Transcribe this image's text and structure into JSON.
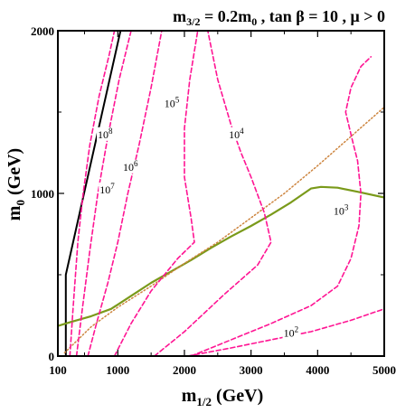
{
  "chart_data": {
    "type": "line",
    "title": {
      "segments": [
        {
          "text": "m",
          "kind": "normal"
        },
        {
          "text": "3/2",
          "kind": "sub"
        },
        {
          "text": " = 0.2m",
          "kind": "normal"
        },
        {
          "text": "0",
          "kind": "sub"
        },
        {
          "text": " , tan ",
          "kind": "normal"
        },
        {
          "text": "β",
          "kind": "normal"
        },
        {
          "text": " = 10 ,  ",
          "kind": "normal"
        },
        {
          "text": "μ",
          "kind": "normal"
        },
        {
          "text": " > 0",
          "kind": "normal"
        }
      ]
    },
    "xlabel": {
      "main": "m",
      "sub": "1/2",
      "unit": " (GeV)"
    },
    "ylabel": {
      "main": "m",
      "sub": "0",
      "unit": " (GeV)"
    },
    "xlim": [
      100,
      5000
    ],
    "ylim": [
      0,
      2000
    ],
    "xticks": [
      {
        "value": 100,
        "label": "100"
      },
      {
        "value": 1000,
        "label": "1000"
      },
      {
        "value": 2000,
        "label": "2000"
      },
      {
        "value": 3000,
        "label": "3000"
      },
      {
        "value": 4000,
        "label": "4000"
      },
      {
        "value": 5000,
        "label": "5000"
      }
    ],
    "yticks": [
      {
        "value": 0,
        "label": "0"
      },
      {
        "value": 1000,
        "label": "1000"
      },
      {
        "value": 2000,
        "label": "2000"
      }
    ],
    "colors": {
      "contours": "#ff1493",
      "boundary": "#000000",
      "green_curve": "#7a9a1a",
      "dotted_line": "#cd853f"
    },
    "series": [
      {
        "style": "black-solid",
        "points": [
          [
            220,
            0
          ],
          [
            220,
            500
          ],
          [
            1040,
            2000
          ]
        ]
      },
      {
        "style": "green-solid",
        "points": [
          [
            100,
            185
          ],
          [
            300,
            210
          ],
          [
            600,
            245
          ],
          [
            900,
            290
          ],
          [
            1200,
            370
          ],
          [
            1500,
            450
          ],
          [
            1800,
            520
          ],
          [
            2100,
            590
          ],
          [
            2400,
            665
          ],
          [
            2700,
            735
          ],
          [
            3000,
            800
          ],
          [
            3300,
            870
          ],
          [
            3600,
            945
          ],
          [
            3900,
            1030
          ],
          [
            4050,
            1040
          ],
          [
            4300,
            1035
          ],
          [
            4600,
            1010
          ],
          [
            5000,
            975
          ]
        ]
      },
      {
        "style": "orange-dotted",
        "points": [
          [
            200,
            20
          ],
          [
            600,
            180
          ],
          [
            1000,
            300
          ],
          [
            1500,
            430
          ],
          [
            2000,
            570
          ],
          [
            2500,
            700
          ],
          [
            3000,
            850
          ],
          [
            3500,
            1000
          ],
          [
            4000,
            1170
          ],
          [
            4500,
            1350
          ],
          [
            5000,
            1530
          ]
        ]
      },
      {
        "style": "pink-dashed",
        "label": "10^8",
        "points": [
          [
            280,
            0
          ],
          [
            330,
            300
          ],
          [
            400,
            700
          ],
          [
            480,
            1000
          ],
          [
            580,
            1300
          ],
          [
            720,
            1600
          ],
          [
            870,
            1850
          ],
          [
            950,
            2000
          ]
        ]
      },
      {
        "style": "pink-dashed",
        "label": "10^7",
        "points": [
          [
            380,
            0
          ],
          [
            470,
            300
          ],
          [
            580,
            650
          ],
          [
            700,
            1000
          ],
          [
            850,
            1350
          ],
          [
            1020,
            1700
          ],
          [
            1200,
            2000
          ]
        ]
      },
      {
        "style": "pink-dashed",
        "label": "10^6",
        "points": [
          [
            550,
            0
          ],
          [
            680,
            200
          ],
          [
            850,
            450
          ],
          [
            1000,
            700
          ],
          [
            1150,
            1000
          ],
          [
            1320,
            1300
          ],
          [
            1500,
            1650
          ],
          [
            1660,
            2000
          ]
        ]
      },
      {
        "style": "pink-dashed",
        "label": "10^5",
        "points": [
          [
            950,
            0
          ],
          [
            1200,
            200
          ],
          [
            1500,
            400
          ],
          [
            1900,
            600
          ],
          [
            2150,
            700
          ],
          [
            2100,
            850
          ],
          [
            2000,
            1100
          ],
          [
            2000,
            1400
          ],
          [
            2080,
            1700
          ],
          [
            2200,
            2000
          ]
        ]
      },
      {
        "style": "pink-dashed",
        "label": "10^4",
        "points": [
          [
            1550,
            0
          ],
          [
            2000,
            150
          ],
          [
            2600,
            380
          ],
          [
            3100,
            560
          ],
          [
            3300,
            700
          ],
          [
            3200,
            880
          ],
          [
            3000,
            1100
          ],
          [
            2850,
            1250
          ],
          [
            2700,
            1420
          ],
          [
            2500,
            1700
          ],
          [
            2350,
            2000
          ]
        ]
      },
      {
        "style": "pink-dashed",
        "label": "10^3",
        "points": [
          [
            2100,
            0
          ],
          [
            2700,
            100
          ],
          [
            3300,
            200
          ],
          [
            3900,
            310
          ],
          [
            4300,
            430
          ],
          [
            4500,
            600
          ],
          [
            4620,
            800
          ],
          [
            4650,
            1000
          ],
          [
            4600,
            1200
          ],
          [
            4520,
            1330
          ],
          [
            4420,
            1500
          ],
          [
            4500,
            1650
          ],
          [
            4650,
            1780
          ],
          [
            4800,
            1840
          ]
        ]
      },
      {
        "style": "pink-dashed",
        "label": "10^2",
        "points": [
          [
            2050,
            0
          ],
          [
            2700,
            50
          ],
          [
            3300,
            100
          ],
          [
            3900,
            150
          ],
          [
            4500,
            220
          ],
          [
            5000,
            290
          ]
        ]
      }
    ],
    "annotations": [
      {
        "base": "10",
        "exp": "8",
        "x": 820,
        "y": 1340
      },
      {
        "base": "10",
        "exp": "7",
        "x": 850,
        "y": 1000
      },
      {
        "base": "10",
        "exp": "6",
        "x": 1200,
        "y": 1140
      },
      {
        "base": "10",
        "exp": "5",
        "x": 1820,
        "y": 1530
      },
      {
        "base": "10",
        "exp": "4",
        "x": 2790,
        "y": 1340
      },
      {
        "base": "10",
        "exp": "3",
        "x": 4360,
        "y": 870
      },
      {
        "base": "10",
        "exp": "2",
        "x": 3610,
        "y": 120
      }
    ]
  }
}
